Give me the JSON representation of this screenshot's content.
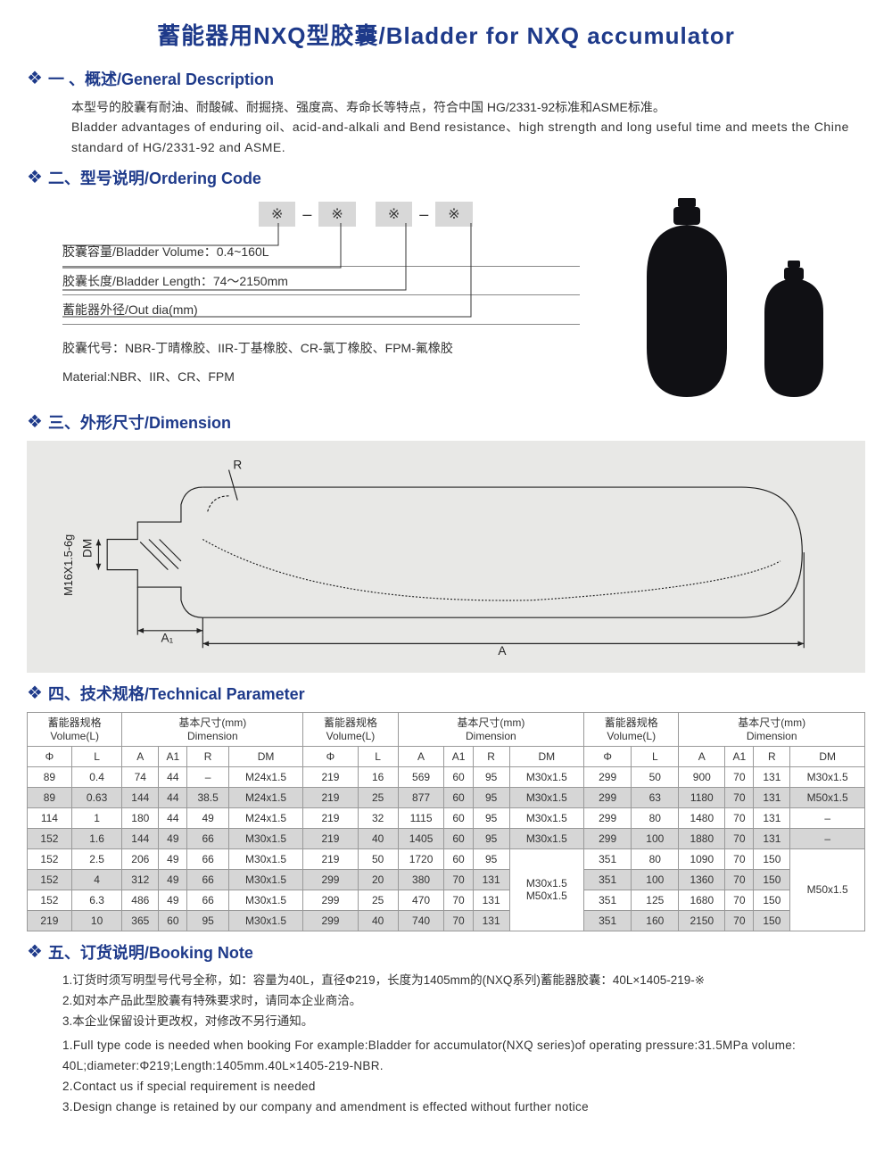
{
  "colors": {
    "heading_blue": "#1e3a8a",
    "panel_bg": "#e8e8e6",
    "box_bg": "#d8d8d8",
    "table_alt": "#d6d6d6",
    "bladder_fill": "#101014"
  },
  "title": "蓄能器用NXQ型胶囊/Bladder for NXQ accumulator",
  "section1": {
    "heading": "一 、概述/General Description",
    "zh": "本型号的胶囊有耐油、耐酸碱、耐掘挠、强度高、寿命长等特点，符合中国 HG/2331-92标准和ASME标准。",
    "en": "Bladder advantages of enduring oil、acid-and-alkali and Bend resistance、high strength and long useful time and meets the Chine standard of HG/2331-92 and ASME."
  },
  "section2": {
    "heading": "二、型号说明/Ordering Code",
    "code_symbol": "※",
    "dash": "–",
    "lines": [
      "胶囊容量/Bladder Volume：0.4~160L",
      "胶囊长度/Bladder Length：74～2150mm",
      "蓄能器外径/Out dia(mm)"
    ],
    "material_zh": "胶囊代号：NBR-丁晴橡胶、IIR-丁基橡胶、CR-氯丁橡胶、FPM-氟橡胶",
    "material_en": "Material:NBR、IIR、CR、FPM"
  },
  "section3": {
    "heading": "三、外形尺寸/Dimension",
    "labels": {
      "R": "R",
      "DM": "DM",
      "thread": "M16X1.5-6g",
      "A1": "A₁",
      "A": "A"
    }
  },
  "section4": {
    "heading": "四、技术规格/Technical Parameter",
    "group_hdr_vol": "蓄能器规格\nVolume(L)",
    "group_hdr_dim": "基本尺寸(mm)\nDimension",
    "cols": [
      "Φ",
      "L",
      "A",
      "A1",
      "R",
      "DM"
    ],
    "rows": [
      {
        "alt": 0,
        "c": [
          "89",
          "0.4",
          "74",
          "44",
          "–",
          "M24x1.5",
          "219",
          "16",
          "569",
          "60",
          "95",
          "M30x1.5",
          "299",
          "50",
          "900",
          "70",
          "131",
          "M30x1.5"
        ]
      },
      {
        "alt": 1,
        "c": [
          "89",
          "0.63",
          "144",
          "44",
          "38.5",
          "M24x1.5",
          "219",
          "25",
          "877",
          "60",
          "95",
          "M30x1.5",
          "299",
          "63",
          "1180",
          "70",
          "131",
          "M50x1.5"
        ]
      },
      {
        "alt": 0,
        "c": [
          "114",
          "1",
          "180",
          "44",
          "49",
          "M24x1.5",
          "219",
          "32",
          "1115",
          "60",
          "95",
          "M30x1.5",
          "299",
          "80",
          "1480",
          "70",
          "131",
          "–"
        ]
      },
      {
        "alt": 1,
        "c": [
          "152",
          "1.6",
          "144",
          "49",
          "66",
          "M30x1.5",
          "219",
          "40",
          "1405",
          "60",
          "95",
          "M30x1.5",
          "299",
          "100",
          "1880",
          "70",
          "131",
          "–"
        ]
      },
      {
        "alt": 0,
        "c": [
          "152",
          "2.5",
          "206",
          "49",
          "66",
          "M30x1.5",
          "219",
          "50",
          "1720",
          "60",
          "95",
          "",
          "351",
          "80",
          "1090",
          "70",
          "150",
          ""
        ]
      },
      {
        "alt": 1,
        "c": [
          "152",
          "4",
          "312",
          "49",
          "66",
          "M30x1.5",
          "299",
          "20",
          "380",
          "70",
          "131",
          "M30x1.5",
          "351",
          "100",
          "1360",
          "70",
          "150",
          ""
        ]
      },
      {
        "alt": 0,
        "c": [
          "152",
          "6.3",
          "486",
          "49",
          "66",
          "M30x1.5",
          "299",
          "25",
          "470",
          "70",
          "131",
          "M50x1.5",
          "351",
          "125",
          "1680",
          "70",
          "150",
          ""
        ]
      },
      {
        "alt": 1,
        "c": [
          "219",
          "10",
          "365",
          "60",
          "95",
          "M30x1.5",
          "299",
          "40",
          "740",
          "70",
          "131",
          "",
          "351",
          "160",
          "2150",
          "70",
          "150",
          ""
        ]
      }
    ],
    "merge_mid": "M30x1.5\nM50x1.5",
    "merge_right": "M50x1.5"
  },
  "section5": {
    "heading": "五、订货说明/Booking Note",
    "zh": [
      "1.订货时须写明型号代号全称，如：容量为40L，直径Φ219，长度为1405mm的(NXQ系列)蓄能器胶囊：40L×1405-219-※",
      "2.如对本产品此型胶囊有特殊要求时，请同本企业商洽。",
      "3.本企业保留设计更改权，对修改不另行通知。"
    ],
    "en": [
      "1.Full type code is needed when booking For example:Bladder for accumulator(NXQ series)of operating pressure:31.5MPa volume: 40L;diameter:Φ219;Length:1405mm.40L×1405-219-NBR.",
      "2.Contact us if special requirement is needed",
      "3.Design change is retained by our company and amendment is effected without further notice"
    ]
  }
}
